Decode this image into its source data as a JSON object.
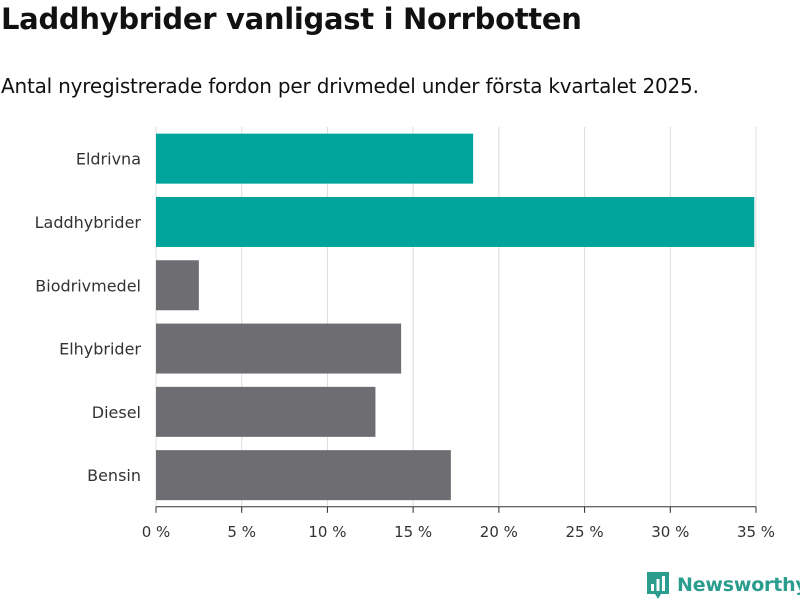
{
  "title": "Laddhybrider vanligast i Norrbotten",
  "subtitle": "Antal nyregistrerade fordon per drivmedel under första kvartalet 2025.",
  "brand": {
    "name": "Newsworthy",
    "icon": "bar-chart-icon"
  },
  "colors": {
    "highlight": "#00a49a",
    "default": "#6e6d72",
    "grid": "#dcdcdc",
    "axis": "#333333"
  },
  "chart_data": {
    "type": "bar",
    "orientation": "horizontal",
    "categories": [
      "Eldrivna",
      "Laddhybrider",
      "Biodrivmedel",
      "Elhybrider",
      "Diesel",
      "Bensin"
    ],
    "values": [
      18.5,
      34.9,
      2.5,
      14.3,
      12.8,
      17.2
    ],
    "highlighted": [
      true,
      true,
      false,
      false,
      false,
      false
    ],
    "xlim": [
      0,
      35
    ],
    "xticks": [
      0,
      5,
      10,
      15,
      20,
      25,
      30,
      35
    ],
    "xtick_labels": [
      "0 %",
      "5 %",
      "10 %",
      "15 %",
      "20 %",
      "25 %",
      "30 %",
      "35 %"
    ],
    "title": "Laddhybrider vanligast i Norrbotten",
    "xlabel": "",
    "ylabel": "",
    "grid": true,
    "legend": false
  }
}
